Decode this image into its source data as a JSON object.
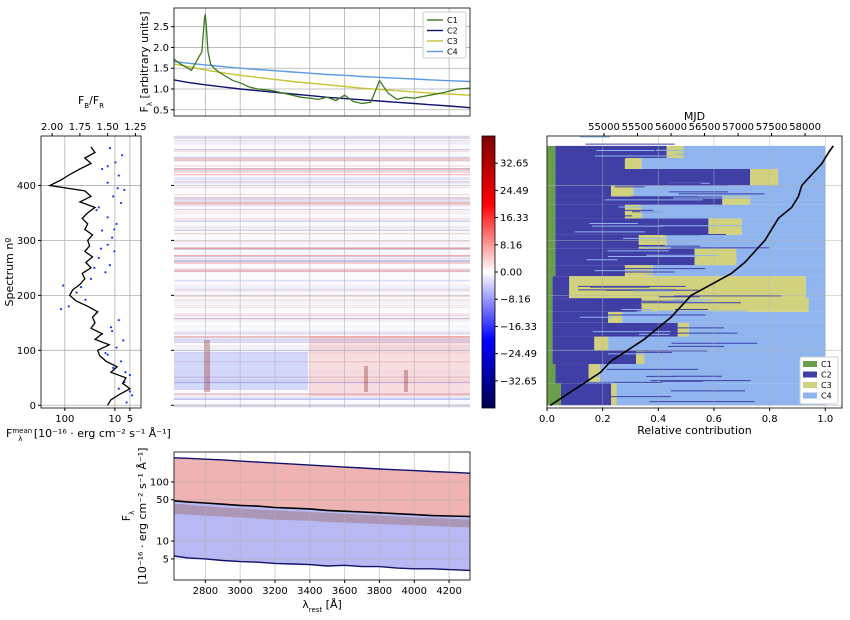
{
  "chart_data": [
    {
      "id": "top",
      "type": "line",
      "title": "",
      "ylabel": "F",
      "ylabel_sub": "λ",
      "ylabel_unit": " [arbitrary units]",
      "xlim": [
        2620,
        4320
      ],
      "ylim": [
        0.35,
        2.95
      ],
      "yticks": [
        0.5,
        1.0,
        1.5,
        2.0,
        2.5
      ],
      "ytick_labels": [
        "0.5",
        "1.0",
        "1.5",
        "2.0",
        "2.5"
      ],
      "xticks": [
        2800,
        3000,
        3200,
        3400,
        3600,
        3800,
        4000,
        4200
      ],
      "legend_position": "top-right",
      "series": [
        {
          "name": "C1",
          "color": "#3d7a1f",
          "x": [
            2620,
            2650,
            2680,
            2700,
            2720,
            2740,
            2760,
            2780,
            2795,
            2800,
            2805,
            2815,
            2830,
            2850,
            2880,
            2920,
            2960,
            3000,
            3050,
            3100,
            3150,
            3200,
            3250,
            3300,
            3350,
            3400,
            3450,
            3500,
            3550,
            3600,
            3650,
            3700,
            3750,
            3800,
            3850,
            3900,
            3950,
            4000,
            4050,
            4100,
            4150,
            4200,
            4250,
            4320
          ],
          "y": [
            1.72,
            1.62,
            1.55,
            1.5,
            1.45,
            1.6,
            1.75,
            1.9,
            2.7,
            2.8,
            2.55,
            1.9,
            1.6,
            1.5,
            1.4,
            1.3,
            1.2,
            1.15,
            1.05,
            1.0,
            0.98,
            0.95,
            0.9,
            0.85,
            0.8,
            0.78,
            0.75,
            0.8,
            0.72,
            0.85,
            0.7,
            0.65,
            0.68,
            1.2,
            0.9,
            0.75,
            0.8,
            0.78,
            0.82,
            0.86,
            0.9,
            0.95,
            1.0,
            1.02
          ]
        },
        {
          "name": "C2",
          "color": "#11116e",
          "x": [
            2620,
            2700,
            2800,
            2900,
            3000,
            3100,
            3200,
            3300,
            3400,
            3500,
            3600,
            3700,
            3800,
            3900,
            4000,
            4100,
            4200,
            4320
          ],
          "y": [
            1.22,
            1.16,
            1.1,
            1.05,
            1.0,
            0.96,
            0.92,
            0.88,
            0.84,
            0.8,
            0.77,
            0.74,
            0.71,
            0.68,
            0.65,
            0.62,
            0.59,
            0.55
          ]
        },
        {
          "name": "C3",
          "color": "#c9c232",
          "x": [
            2620,
            2700,
            2800,
            2900,
            3000,
            3100,
            3200,
            3300,
            3400,
            3500,
            3600,
            3700,
            3800,
            3900,
            4000,
            4100,
            4200,
            4320
          ],
          "y": [
            1.6,
            1.54,
            1.46,
            1.39,
            1.33,
            1.28,
            1.23,
            1.18,
            1.14,
            1.1,
            1.06,
            1.02,
            0.99,
            0.96,
            0.93,
            0.9,
            0.88,
            0.85
          ]
        },
        {
          "name": "C4",
          "color": "#5b9be6",
          "x": [
            2620,
            2700,
            2800,
            2900,
            3000,
            3100,
            3200,
            3300,
            3400,
            3500,
            3600,
            3700,
            3800,
            3900,
            4000,
            4100,
            4200,
            4320
          ],
          "y": [
            1.66,
            1.62,
            1.58,
            1.54,
            1.5,
            1.47,
            1.44,
            1.41,
            1.38,
            1.35,
            1.33,
            1.3,
            1.28,
            1.26,
            1.24,
            1.22,
            1.2,
            1.18
          ]
        }
      ]
    },
    {
      "id": "left",
      "type": "scatter",
      "xlabel": "F",
      "xlabel_sub": "λ",
      "xlabel_sup": "mean",
      "xlabel_unit": " [10⁻¹⁶ · erg cm⁻² s⁻¹ Å⁻¹]",
      "ylabel": "Spectrum nº",
      "top_xlabel": "F",
      "top_xlabel_sub": "B",
      "top_xlabel_mid": "/F",
      "top_xlabel_sub2": "R",
      "yticks": [
        0,
        100,
        200,
        300,
        400
      ],
      "ylim": [
        -5,
        490
      ],
      "xscale": "log-reversed",
      "xlim": [
        300,
        3
      ],
      "xtick_labels": [
        "100",
        "10",
        "5"
      ],
      "xticks": [
        100,
        10,
        5
      ],
      "top_xticks": [
        2.0,
        1.75,
        1.5,
        1.25
      ],
      "top_xtick_labels": [
        "2.00",
        "1.75",
        "1.50",
        "1.25"
      ],
      "top_xlim": [
        2.1,
        1.2
      ],
      "series": [
        {
          "name": "",
          "color": "#000000",
          "kind": "line",
          "axis": "bottom",
          "y": [
            0,
            10,
            20,
            30,
            40,
            50,
            60,
            70,
            80,
            90,
            100,
            110,
            120,
            130,
            140,
            150,
            160,
            170,
            180,
            190,
            200,
            210,
            220,
            230,
            240,
            250,
            260,
            270,
            280,
            290,
            300,
            310,
            320,
            330,
            340,
            350,
            360,
            370,
            380,
            390,
            400,
            410,
            420,
            430,
            440,
            450,
            460,
            470
          ],
          "x": [
            14,
            12,
            8,
            5,
            7,
            6,
            12,
            9,
            15,
            20,
            22,
            13,
            25,
            18,
            30,
            25,
            28,
            22,
            35,
            60,
            80,
            70,
            50,
            40,
            45,
            30,
            38,
            28,
            40,
            32,
            35,
            28,
            40,
            35,
            45,
            35,
            25,
            50,
            30,
            40,
            200,
            120,
            80,
            50,
            30,
            40,
            25,
            30
          ]
        },
        {
          "name": "",
          "color": "#1a3ae8",
          "kind": "dots",
          "axis": "top",
          "y": [
            5,
            18,
            30,
            42,
            55,
            68,
            80,
            92,
            105,
            118,
            130,
            142,
            155,
            168,
            180,
            192,
            205,
            218,
            230,
            242,
            255,
            268,
            280,
            292,
            305,
            318,
            330,
            342,
            355,
            368,
            380,
            392,
            405,
            418,
            430,
            442,
            455,
            468,
            25,
            60,
            95,
            135,
            175,
            215,
            250,
            285,
            320,
            360,
            395,
            435
          ],
          "x": [
            1.33,
            1.28,
            1.4,
            1.35,
            1.3,
            1.45,
            1.38,
            1.5,
            1.42,
            1.36,
            1.55,
            1.47,
            1.4,
            1.6,
            1.85,
            1.7,
            1.78,
            1.9,
            1.65,
            1.52,
            1.48,
            1.58,
            1.44,
            1.5,
            1.46,
            1.55,
            1.42,
            1.5,
            1.6,
            1.38,
            1.45,
            1.35,
            1.5,
            1.4,
            1.55,
            1.43,
            1.37,
            1.48,
            1.3,
            1.34,
            1.52,
            1.46,
            1.92,
            1.74,
            1.62,
            1.56,
            1.44,
            1.58,
            1.41,
            1.5
          ]
        }
      ]
    },
    {
      "id": "heatmap",
      "type": "heatmap",
      "colorbar_ticks": [
        32.65,
        24.49,
        16.33,
        8.16,
        0.0,
        -8.16,
        -16.33,
        -24.49,
        -32.65
      ],
      "colorbar_labels": [
        "32.65",
        "24.49",
        "16.33",
        "8.16",
        "0.00",
        "−8.16",
        "−16.33",
        "−24.49",
        "−32.65"
      ],
      "vmin": -40.8,
      "vmax": 40.8,
      "cmap": "seismic"
    },
    {
      "id": "right",
      "type": "bar",
      "orientation": "horizontal",
      "stacked": true,
      "xlabel": "Relative contribution",
      "top_xlabel": "MJD",
      "xticks": [
        0.0,
        0.2,
        0.4,
        0.6,
        0.8,
        1.0
      ],
      "xtick_labels": [
        "0.0",
        "0.2",
        "0.4",
        "0.6",
        "0.8",
        "1.0"
      ],
      "top_xticks": [
        55000,
        55500,
        56000,
        56500,
        57000,
        57500,
        58000
      ],
      "top_xlim": [
        54150,
        58550
      ],
      "legend_position": "bottom-right",
      "series_names": [
        "C1",
        "C2",
        "C3",
        "C4"
      ],
      "series_colors": [
        "#6a9e4a",
        "#3f3fa6",
        "#d2d27e",
        "#8fb4ee"
      ],
      "segments": [
        {
          "from": 0,
          "to": 40,
          "c1": 0.05,
          "c2": 0.18,
          "c3": 0.02
        },
        {
          "from": 40,
          "to": 75,
          "c1": 0.03,
          "c2": 0.12,
          "c3": 0.04
        },
        {
          "from": 75,
          "to": 100,
          "c1": 0.02,
          "c2": 0.3,
          "c3": 0.03
        },
        {
          "from": 100,
          "to": 125,
          "c1": 0.02,
          "c2": 0.15,
          "c3": 0.05
        },
        {
          "from": 125,
          "to": 150,
          "c1": 0.02,
          "c2": 0.45,
          "c3": 0.04
        },
        {
          "from": 150,
          "to": 170,
          "c1": 0.02,
          "c2": 0.2,
          "c3": 0.05
        },
        {
          "from": 170,
          "to": 195,
          "c1": 0.02,
          "c2": 0.32,
          "c3": 0.6
        },
        {
          "from": 195,
          "to": 235,
          "c1": 0.02,
          "c2": 0.06,
          "c3": 0.85
        },
        {
          "from": 235,
          "to": 255,
          "c1": 0.03,
          "c2": 0.25,
          "c3": 0.1
        },
        {
          "from": 255,
          "to": 285,
          "c1": 0.03,
          "c2": 0.5,
          "c3": 0.15
        },
        {
          "from": 285,
          "to": 310,
          "c1": 0.03,
          "c2": 0.3,
          "c3": 0.1
        },
        {
          "from": 310,
          "to": 340,
          "c1": 0.03,
          "c2": 0.55,
          "c3": 0.12
        },
        {
          "from": 340,
          "to": 365,
          "c1": 0.03,
          "c2": 0.25,
          "c3": 0.06
        },
        {
          "from": 365,
          "to": 380,
          "c1": 0.03,
          "c2": 0.6,
          "c3": 0.1
        },
        {
          "from": 380,
          "to": 400,
          "c1": 0.03,
          "c2": 0.2,
          "c3": 0.08
        },
        {
          "from": 400,
          "to": 430,
          "c1": 0.03,
          "c2": 0.7,
          "c3": 0.1
        },
        {
          "from": 430,
          "to": 450,
          "c1": 0.03,
          "c2": 0.25,
          "c3": 0.06
        },
        {
          "from": 450,
          "to": 472,
          "c1": 0.03,
          "c2": 0.4,
          "c3": 0.06
        }
      ],
      "mjd_curve": {
        "spectrum": [
          0,
          20,
          40,
          60,
          80,
          100,
          120,
          140,
          160,
          180,
          200,
          220,
          240,
          260,
          280,
          300,
          320,
          340,
          360,
          380,
          400,
          420,
          440,
          460,
          472
        ],
        "mjd": [
          54200,
          54450,
          54700,
          54950,
          55100,
          55350,
          55600,
          55800,
          56000,
          56150,
          56300,
          56600,
          56900,
          57100,
          57250,
          57400,
          57500,
          57600,
          57800,
          57900,
          57950,
          58100,
          58250,
          58350,
          58420
        ]
      }
    },
    {
      "id": "bottom",
      "type": "area",
      "xlabel": "λ",
      "xlabel_sub": "rest",
      "xlabel_unit": " [Å]",
      "ylabel": "F",
      "ylabel_sub": "λ",
      "ylabel2": "[10⁻¹⁶ · erg cm⁻² s⁻¹ Å⁻¹]",
      "yscale": "log",
      "ylim": [
        2.2,
        320
      ],
      "xlim": [
        2620,
        4320
      ],
      "xticks": [
        2800,
        3000,
        3200,
        3400,
        3600,
        3800,
        4000,
        4200
      ],
      "yticks": [
        5,
        10,
        50,
        100
      ],
      "ytick_labels": [
        "5",
        "10",
        "50",
        "100"
      ],
      "x": [
        2620,
        2700,
        2800,
        2900,
        3000,
        3100,
        3200,
        3300,
        3400,
        3500,
        3600,
        3700,
        3800,
        3900,
        4000,
        4100,
        4200,
        4320
      ],
      "upper": [
        255,
        250,
        242,
        235,
        225,
        216,
        208,
        200,
        192,
        185,
        178,
        172,
        165,
        160,
        155,
        150,
        146,
        140
      ],
      "mean": [
        48,
        46,
        44,
        42,
        40,
        39,
        37,
        36,
        35,
        33,
        32,
        31,
        30,
        29,
        28,
        27,
        26.5,
        26
      ],
      "lower": [
        5.6,
        5.2,
        5.0,
        4.7,
        4.5,
        4.4,
        4.2,
        4.1,
        4.0,
        3.8,
        3.9,
        3.7,
        3.7,
        3.5,
        3.4,
        3.4,
        3.3,
        3.2
      ],
      "inner_upper": [
        43,
        41,
        39,
        37,
        36,
        34,
        33,
        32,
        31,
        30,
        29,
        28,
        27,
        26,
        25,
        24.5,
        24,
        23
      ],
      "inner_lower": [
        29,
        28,
        27,
        26,
        25,
        24,
        23,
        22.5,
        22,
        21,
        20.5,
        20,
        19.5,
        19,
        18.5,
        18,
        17.5,
        17
      ],
      "colors": {
        "upper": "#f0b3b3",
        "lower": "#b8b8f2",
        "mean": "#000000",
        "edge": "#11116e",
        "band": "#a07a84"
      }
    }
  ]
}
